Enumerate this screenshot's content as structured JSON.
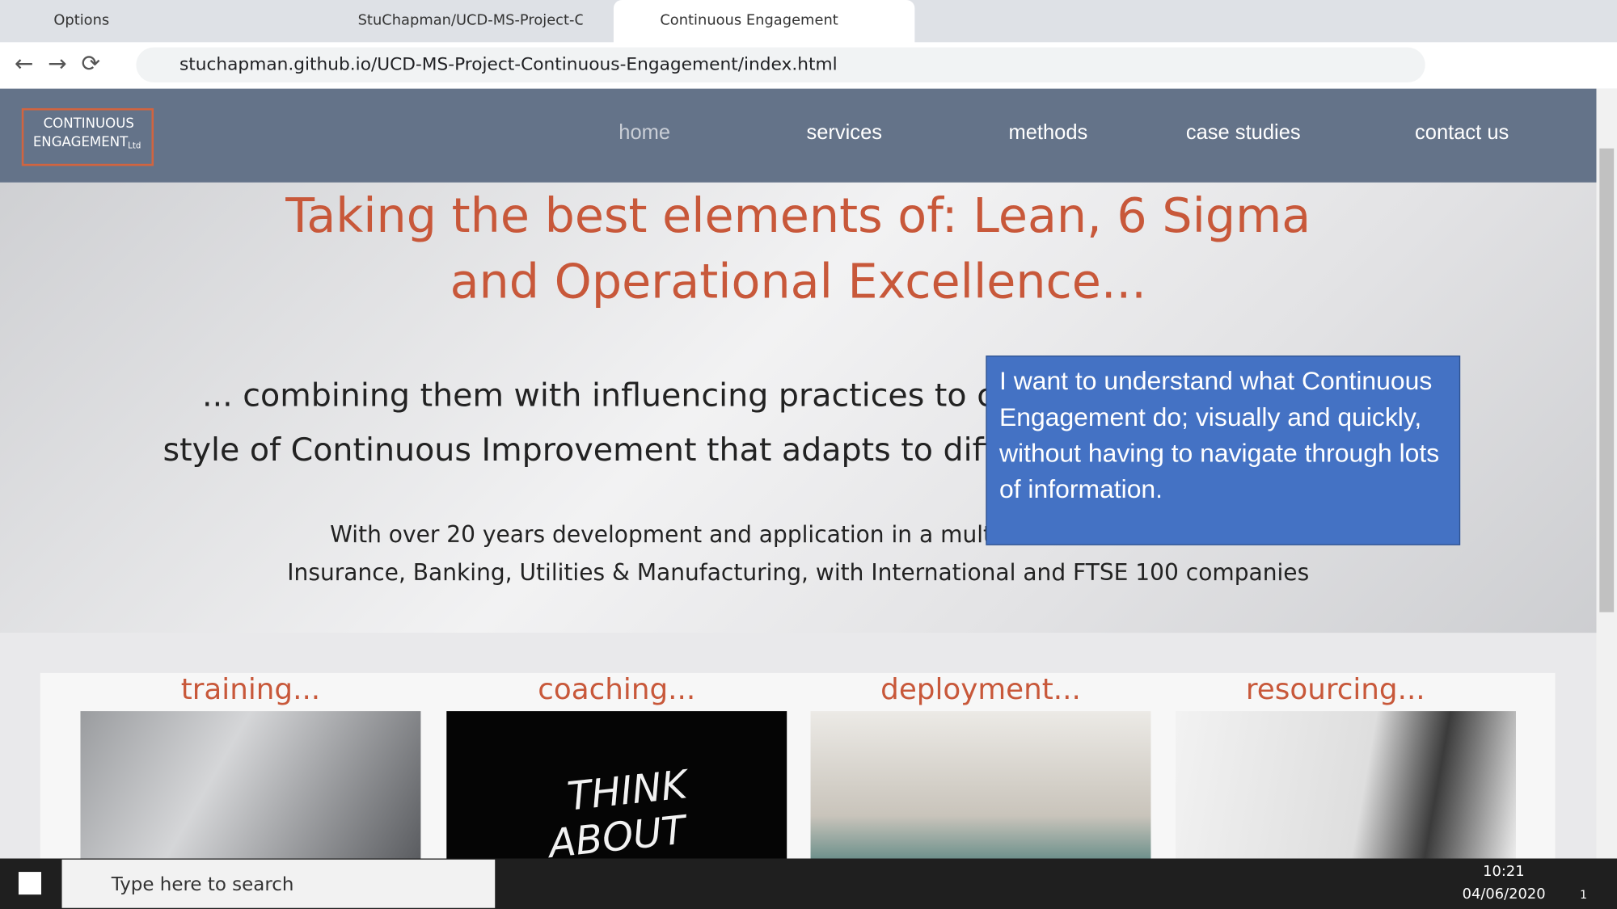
{
  "browser": {
    "tabs": [
      "Options",
      "StuChapman/UCD-MS-Project-C",
      "Continuous Engagement"
    ],
    "url": "stuchapman.github.io/UCD-MS-Project-Continuous-Engagement/index.html"
  },
  "site": {
    "logo": [
      "CONTINUOUS",
      "ENGAGEMENT",
      "Ltd"
    ],
    "nav": [
      "home",
      "services",
      "methods",
      "case studies",
      "contact us"
    ],
    "hero": {
      "heading": [
        "Taking the best elements of: Lean, 6 Sigma",
        "and Operational Excellence..."
      ],
      "sub": [
        "... combining them with influencing practices to cre",
        "style of Continuous Improvement that adapts to diffe"
      ],
      "para": [
        "With over 20 years development and application in a multitu",
        "Insurance, Banking, Utilities & Manufacturing, with International and FTSE 100 companies"
      ]
    },
    "cards": [
      "training...",
      "coaching...",
      "deployment...",
      "resourcing..."
    ],
    "image_text": [
      "THINK",
      "ABOUT"
    ]
  },
  "callout": "I want to understand what Continuous Engagement do; visually and quickly, without having to navigate through lots of information.",
  "taskbar": {
    "search": "Type here to search",
    "time": "10:21",
    "date": "04/06/2020",
    "notifications": "1"
  }
}
